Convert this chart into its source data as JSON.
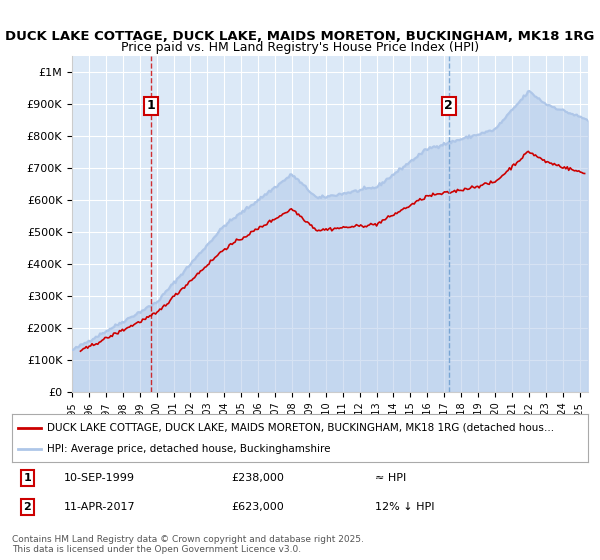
{
  "title_line1": "DUCK LAKE COTTAGE, DUCK LAKE, MAIDS MORETON, BUCKINGHAM, MK18 1RG",
  "title_line2": "Price paid vs. HM Land Registry's House Price Index (HPI)",
  "xlim_start": 1995.0,
  "xlim_end": 2025.5,
  "ylim_min": 0,
  "ylim_max": 1050000,
  "yticks": [
    0,
    100000,
    200000,
    300000,
    400000,
    500000,
    600000,
    700000,
    800000,
    900000,
    1000000
  ],
  "ytick_labels": [
    "£0",
    "£100K",
    "£200K",
    "£300K",
    "£400K",
    "£500K",
    "£600K",
    "£700K",
    "£800K",
    "£900K",
    "£1M"
  ],
  "xticks": [
    1995,
    1996,
    1997,
    1998,
    1999,
    2000,
    2001,
    2002,
    2003,
    2004,
    2005,
    2006,
    2007,
    2008,
    2009,
    2010,
    2011,
    2012,
    2013,
    2014,
    2015,
    2016,
    2017,
    2018,
    2019,
    2020,
    2021,
    2022,
    2023,
    2024,
    2025
  ],
  "hpi_color": "#aec6e8",
  "price_color": "#cc0000",
  "marker1_x": 1999.69,
  "marker1_y": 238000,
  "marker2_x": 2017.27,
  "marker2_y": 623000,
  "marker1_label": "1",
  "marker2_label": "2",
  "legend_line1": "DUCK LAKE COTTAGE, DUCK LAKE, MAIDS MORETON, BUCKINGHAM, MK18 1RG (detached hous…",
  "legend_line2": "HPI: Average price, detached house, Buckinghamshire",
  "annotation1": "1    10-SEP-1999         £238,000          ≈ HPI",
  "annotation2": "2    11-APR-2017         £623,000          12% ↓ HPI",
  "footer": "Contains HM Land Registry data © Crown copyright and database right 2025.\nThis data is licensed under the Open Government Licence v3.0.",
  "bg_color": "#ffffff",
  "plot_bg_color": "#dce9f7",
  "grid_color": "#ffffff"
}
